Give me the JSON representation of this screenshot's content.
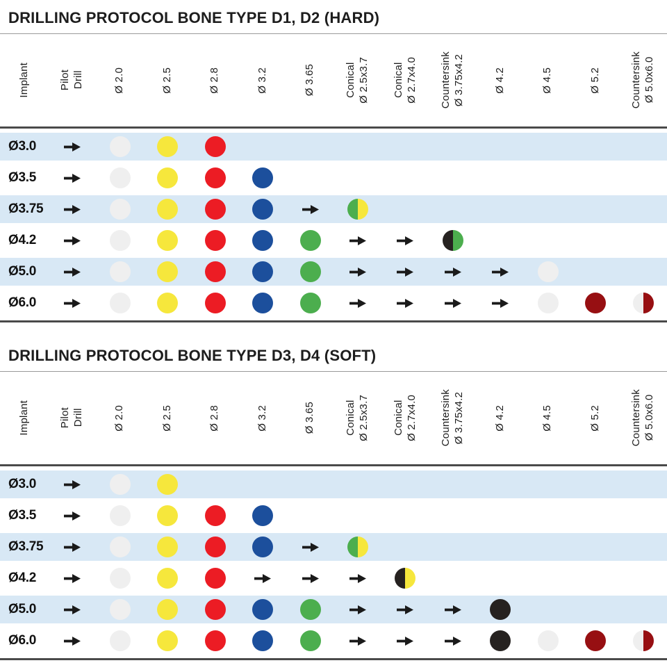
{
  "colors": {
    "row_alt": "#d8e8f5",
    "line_dark": "#4a4a4a",
    "line_light": "#9a9a9a",
    "arrow": "#1a1a1a",
    "dot_white": "#efefef",
    "dot_yellow": "#f6e73c",
    "dot_red": "#ec1c24",
    "dot_blue": "#1c4f9c",
    "dot_green": "#4cae4e",
    "dot_black": "#262220",
    "dot_darkred": "#970f12"
  },
  "columns": [
    {
      "line1": "Implant",
      "line2": ""
    },
    {
      "line1": "Pilot",
      "line2": "Drill"
    },
    {
      "line1": "Ø 2.0",
      "line2": ""
    },
    {
      "line1": "Ø 2.5",
      "line2": ""
    },
    {
      "line1": "Ø 2.8",
      "line2": ""
    },
    {
      "line1": "Ø 3.2",
      "line2": ""
    },
    {
      "line1": "Ø 3.65",
      "line2": ""
    },
    {
      "line1": "Conical",
      "line2": "Ø 2.5x3.7"
    },
    {
      "line1": "Conical",
      "line2": "Ø 2.7x4.0"
    },
    {
      "line1": "Countersink",
      "line2": "Ø 3.75x4.2"
    },
    {
      "line1": "Ø 4.2",
      "line2": ""
    },
    {
      "line1": "Ø 4.5",
      "line2": ""
    },
    {
      "line1": "Ø 5.2",
      "line2": ""
    },
    {
      "line1": "Countersink",
      "line2": "Ø 5.0x6.0"
    }
  ],
  "legend_note": "cell tokens: arrow = sequence arrow, dot:<color> = drill step dot, half:<left>:<right> = split dot, empty = no step",
  "tables": [
    {
      "title": "DRILLING PROTOCOL BONE TYPE D1, D2 (HARD)",
      "rows": [
        {
          "label": "Ø3.0",
          "cells": [
            "arrow",
            "dot:white",
            "dot:yellow",
            "dot:red",
            "",
            "",
            "",
            "",
            "",
            "",
            "",
            "",
            ""
          ]
        },
        {
          "label": "Ø3.5",
          "cells": [
            "arrow",
            "dot:white",
            "dot:yellow",
            "dot:red",
            "dot:blue",
            "",
            "",
            "",
            "",
            "",
            "",
            "",
            ""
          ]
        },
        {
          "label": "Ø3.75",
          "cells": [
            "arrow",
            "dot:white",
            "dot:yellow",
            "dot:red",
            "dot:blue",
            "arrow",
            "half:green:yellow",
            "",
            "",
            "",
            "",
            "",
            ""
          ]
        },
        {
          "label": "Ø4.2",
          "cells": [
            "arrow",
            "dot:white",
            "dot:yellow",
            "dot:red",
            "dot:blue",
            "dot:green",
            "arrow",
            "arrow",
            "half:black:green",
            "",
            "",
            "",
            ""
          ]
        },
        {
          "label": "Ø5.0",
          "cells": [
            "arrow",
            "dot:white",
            "dot:yellow",
            "dot:red",
            "dot:blue",
            "dot:green",
            "arrow",
            "arrow",
            "arrow",
            "arrow",
            "dot:white",
            "",
            ""
          ]
        },
        {
          "label": "Ø6.0",
          "cells": [
            "arrow",
            "dot:white",
            "dot:yellow",
            "dot:red",
            "dot:blue",
            "dot:green",
            "arrow",
            "arrow",
            "arrow",
            "arrow",
            "dot:white",
            "dot:darkred",
            "half:white:darkred"
          ]
        }
      ]
    },
    {
      "title": "DRILLING PROTOCOL BONE TYPE D3, D4 (SOFT)",
      "rows": [
        {
          "label": "Ø3.0",
          "cells": [
            "arrow",
            "dot:white",
            "dot:yellow",
            "",
            "",
            "",
            "",
            "",
            "",
            "",
            "",
            "",
            ""
          ]
        },
        {
          "label": "Ø3.5",
          "cells": [
            "arrow",
            "dot:white",
            "dot:yellow",
            "dot:red",
            "dot:blue",
            "",
            "",
            "",
            "",
            "",
            "",
            "",
            ""
          ]
        },
        {
          "label": "Ø3.75",
          "cells": [
            "arrow",
            "dot:white",
            "dot:yellow",
            "dot:red",
            "dot:blue",
            "arrow",
            "half:green:yellow",
            "",
            "",
            "",
            "",
            "",
            ""
          ]
        },
        {
          "label": "Ø4.2",
          "cells": [
            "arrow",
            "dot:white",
            "dot:yellow",
            "dot:red",
            "arrow",
            "arrow",
            "arrow",
            "half:black:yellow",
            "",
            "",
            "",
            "",
            ""
          ]
        },
        {
          "label": "Ø5.0",
          "cells": [
            "arrow",
            "dot:white",
            "dot:yellow",
            "dot:red",
            "dot:blue",
            "dot:green",
            "arrow",
            "arrow",
            "arrow",
            "dot:black",
            "",
            "",
            ""
          ]
        },
        {
          "label": "Ø6.0",
          "cells": [
            "arrow",
            "dot:white",
            "dot:yellow",
            "dot:red",
            "dot:blue",
            "dot:green",
            "arrow",
            "arrow",
            "arrow",
            "dot:black",
            "dot:white",
            "dot:darkred",
            "half:white:darkred"
          ]
        }
      ]
    }
  ]
}
